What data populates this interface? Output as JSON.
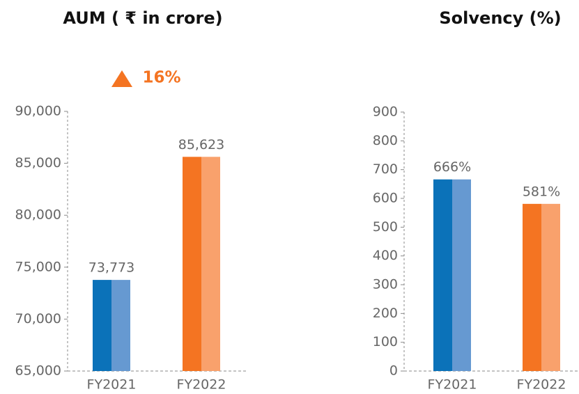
{
  "chart_data": [
    {
      "type": "bar",
      "title": "AUM ( ₹ in crore)",
      "annotation": "16%",
      "categories": [
        "FY2021",
        "FY2022"
      ],
      "values": [
        73773,
        85623
      ],
      "value_labels": [
        "73,773",
        "85,623"
      ],
      "colors": [
        "#0b72b9",
        "#f47422"
      ],
      "light_colors": [
        "#6699d1",
        "#f9a16c"
      ],
      "ylim": [
        65000,
        90000
      ],
      "yticks": [
        {
          "value": 65000,
          "label": "65,000"
        },
        {
          "value": 70000,
          "label": "70,000"
        },
        {
          "value": 75000,
          "label": "75,000"
        },
        {
          "value": 80000,
          "label": "80,000"
        },
        {
          "value": 85000,
          "label": "85,000"
        },
        {
          "value": 90000,
          "label": "90,000"
        }
      ]
    },
    {
      "type": "bar",
      "title": "Solvency (%)",
      "categories": [
        "FY2021",
        "FY2022"
      ],
      "values": [
        666,
        581
      ],
      "value_labels": [
        "666%",
        "581%"
      ],
      "colors": [
        "#0b72b9",
        "#f47422"
      ],
      "light_colors": [
        "#6699d1",
        "#f9a16c"
      ],
      "ylim": [
        0,
        900
      ],
      "yticks": [
        0,
        100,
        200,
        300,
        400,
        500,
        600,
        700,
        800,
        900
      ]
    }
  ]
}
